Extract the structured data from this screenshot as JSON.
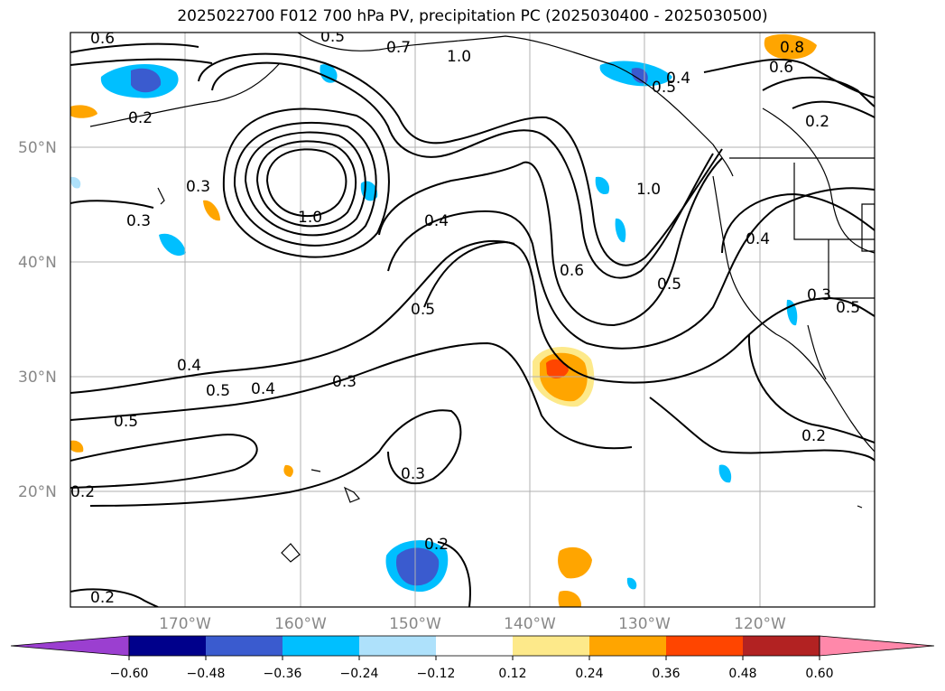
{
  "title": "2025022700 F012 700 hPa PV, precipitation PC (2025030400 - 2025030500)",
  "map": {
    "lat_ticks": [
      "50°N",
      "40°N",
      "30°N",
      "20°N"
    ],
    "lon_ticks": [
      "170°W",
      "160°W",
      "150°W",
      "140°W",
      "130°W",
      "120°W"
    ],
    "contour_labels": [
      "0.6",
      "0.5",
      "0.7",
      "1.0",
      "0.4",
      "0.5",
      "0.8",
      "0.6",
      "0.2",
      "0.2",
      "0.3",
      "0.3",
      "1.0",
      "0.4",
      "1.0",
      "0.6",
      "0.5",
      "0.4",
      "0.3",
      "0.5",
      "0.5",
      "0.4",
      "0.5",
      "0.4",
      "0.3",
      "0.5",
      "0.3",
      "0.2",
      "0.2",
      "0.2",
      "0.2"
    ]
  },
  "colorbar": {
    "colors": [
      "#9b3fd0",
      "#00008b",
      "#3a5bcf",
      "#00bfff",
      "#aee1fb",
      "#ffffff",
      "#fde98a",
      "#ffa500",
      "#ff4500",
      "#b22222",
      "#ff88aa"
    ],
    "tick_labels": [
      "−0.60",
      "−0.48",
      "−0.36",
      "−0.24",
      "−0.12",
      "0.12",
      "0.24",
      "0.36",
      "0.48",
      "0.60"
    ]
  }
}
